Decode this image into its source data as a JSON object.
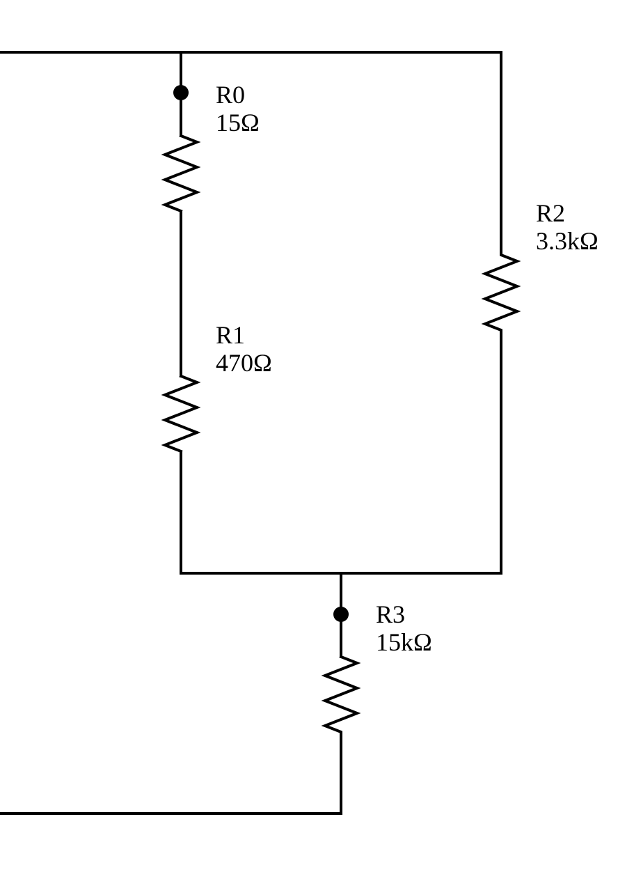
{
  "diagram": {
    "type": "resistor-circuit",
    "components": [
      {
        "id": "R0",
        "name": "R0",
        "value": "15Ω"
      },
      {
        "id": "R1",
        "name": "R1",
        "value": "470Ω"
      },
      {
        "id": "R2",
        "name": "R2",
        "value": "3.3kΩ"
      },
      {
        "id": "R3",
        "name": "R3",
        "value": "15kΩ"
      }
    ]
  }
}
